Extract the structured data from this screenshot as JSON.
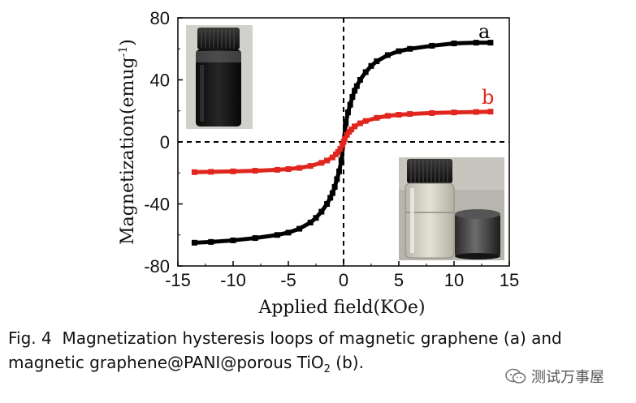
{
  "chart_data": {
    "type": "scatter",
    "title": "",
    "xlabel": "Applied field(KOe)",
    "ylabel": "Magnetization(emug^-1)",
    "ylabel_main": "Magnetization(emug",
    "ylabel_sup": "-1",
    "ylabel_close": ")",
    "xlim": [
      -15,
      15
    ],
    "ylim": [
      -80,
      80
    ],
    "xticks": [
      -15,
      -10,
      -5,
      0,
      5,
      10,
      15
    ],
    "yticks": [
      -80,
      -40,
      0,
      40,
      80
    ],
    "xtick_labels": [
      "-15",
      "-10",
      "-5",
      "0",
      "5",
      "10",
      "15"
    ],
    "ytick_labels": [
      "-80",
      "-40",
      "0",
      "40",
      "80"
    ],
    "reference_lines": "dashed lines at x=0 and y=0",
    "series": [
      {
        "name": "a",
        "label": "a",
        "color": "#000000",
        "description": "magnetic graphene",
        "x": [
          -13.5,
          -12,
          -10,
          -8,
          -6,
          -5,
          -4,
          -3,
          -2.5,
          -2,
          -1.5,
          -1.2,
          -1,
          -0.8,
          -0.6,
          -0.4,
          -0.2,
          0,
          0.2,
          0.4,
          0.6,
          0.8,
          1,
          1.2,
          1.5,
          2,
          2.5,
          3,
          4,
          5,
          6,
          8,
          10,
          12,
          13.3
        ],
        "y": [
          -65,
          -64.5,
          -63.5,
          -62,
          -60,
          -58.5,
          -56,
          -52,
          -49,
          -45,
          -40,
          -36,
          -33,
          -29,
          -24,
          -19,
          -12,
          0,
          12,
          19,
          24,
          29,
          33,
          36,
          40,
          45,
          49,
          52,
          56,
          58.5,
          60,
          62,
          63.5,
          64,
          64
        ]
      },
      {
        "name": "b",
        "label": "b",
        "color": "#e0261e",
        "description": "magnetic graphene@PANI@porous TiO2",
        "x": [
          -13.5,
          -12,
          -10,
          -8,
          -6,
          -5,
          -4,
          -3,
          -2,
          -1.5,
          -1,
          -0.7,
          -0.5,
          -0.3,
          -0.1,
          0,
          0.1,
          0.3,
          0.5,
          0.7,
          1,
          1.5,
          2,
          3,
          4,
          5,
          6,
          8,
          10,
          12,
          13.3
        ],
        "y": [
          -19.5,
          -19.3,
          -19,
          -18.6,
          -18,
          -17.5,
          -16.8,
          -15.5,
          -13.5,
          -12,
          -10,
          -8,
          -6.5,
          -4.5,
          -2,
          0,
          2,
          4.5,
          6.5,
          8,
          10,
          12,
          13.5,
          15.5,
          16.8,
          17.5,
          18,
          18.6,
          19,
          19.3,
          19.5
        ]
      }
    ]
  },
  "insets": {
    "top_left": "vial-dark-dispersion",
    "bottom_right": "vial-separated-with-magnet"
  },
  "caption": {
    "fig_label": "Fig. 4",
    "text_line1": "Magnetization hysteresis loops of magnetic graphene (a) and",
    "text_line2_pre": "magnetic graphene@PANI@porous TiO",
    "text_line2_sub": "2",
    "text_line2_post": " (b)."
  },
  "watermark": {
    "text": "测试万事屋"
  }
}
